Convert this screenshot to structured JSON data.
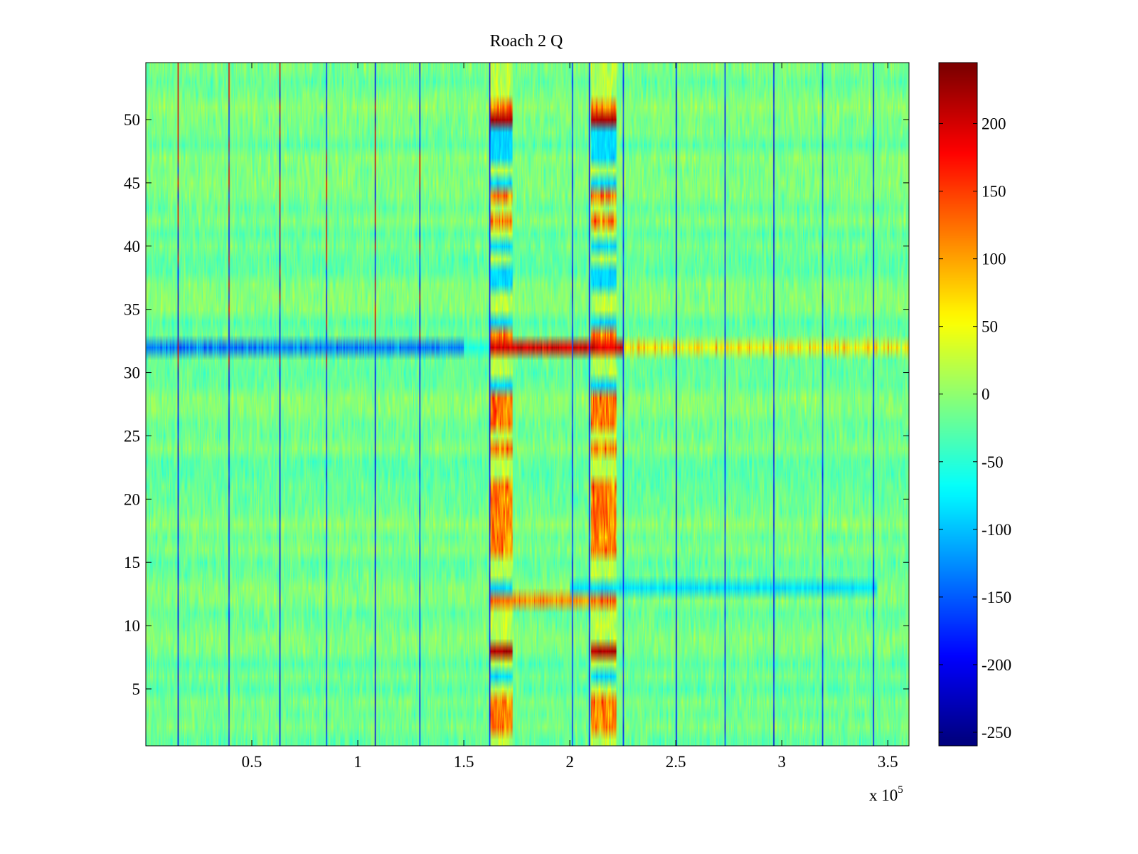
{
  "chart_data": {
    "type": "heatmap",
    "title": "Roach 2 Q",
    "xlabel": "",
    "ylabel": "",
    "x_multiplier_label": "x 10",
    "x_multiplier_exponent": "5",
    "xlim": [
      0,
      360000
    ],
    "ylim": [
      0.5,
      54.5
    ],
    "x_ticks": [
      0.5,
      1,
      1.5,
      2,
      2.5,
      3,
      3.5
    ],
    "x_tick_labels": [
      "0.5",
      "1",
      "1.5",
      "2",
      "2.5",
      "3",
      "3.5"
    ],
    "y_ticks": [
      5,
      10,
      15,
      20,
      25,
      30,
      35,
      40,
      45,
      50
    ],
    "y_tick_labels": [
      "5",
      "10",
      "15",
      "20",
      "25",
      "30",
      "35",
      "40",
      "45",
      "50"
    ],
    "rows": 54,
    "colormap": "jet",
    "colorbar": {
      "range": [
        -260,
        245
      ],
      "ticks": [
        200,
        150,
        100,
        50,
        0,
        -50,
        -100,
        -150,
        -200,
        -250
      ],
      "tick_labels": [
        "200",
        "150",
        "100",
        "50",
        "0",
        "-50",
        "-100",
        "-150",
        "-200",
        "-250"
      ]
    },
    "background_level": -15,
    "vertical_stripes_x": [
      15000,
      39000,
      63000,
      85000,
      108000,
      129000,
      162000,
      201000,
      209000,
      225000,
      250000,
      273000,
      296000,
      319000,
      343000
    ],
    "burst_regions": [
      {
        "x_start": 162000,
        "x_end": 173000
      },
      {
        "x_start": 210000,
        "x_end": 222000
      }
    ],
    "row_32_profile": "strongly negative (about -130) for x < 150000, about +230 saturated in bursts, positive (+100) tail beyond 225000",
    "row_12_13_profile": "cyan band (about -80) for x between 200000 and 345000"
  }
}
